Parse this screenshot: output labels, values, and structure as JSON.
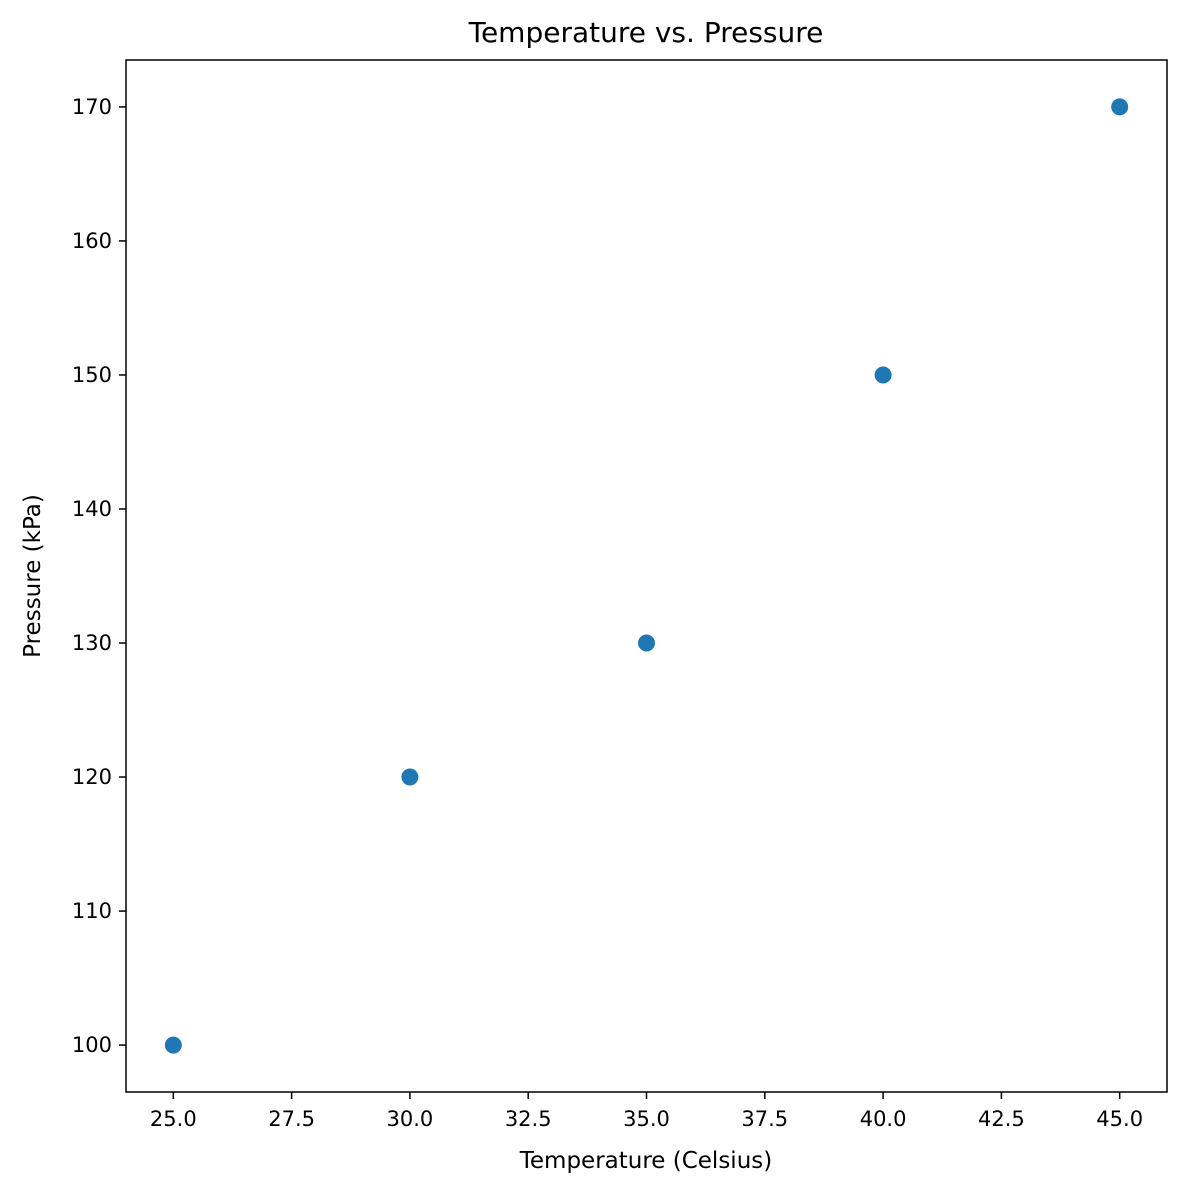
{
  "chart_data": {
    "type": "scatter",
    "title": "Temperature vs. Pressure",
    "xlabel": "Temperature (Celsius)",
    "ylabel": "Pressure (kPa)",
    "x": [
      25,
      30,
      35,
      40,
      45
    ],
    "y": [
      100,
      120,
      130,
      150,
      170
    ],
    "xlim": [
      24,
      46
    ],
    "ylim": [
      96.5,
      173.5
    ],
    "xticks": [
      "25.0",
      "27.5",
      "30.0",
      "32.5",
      "35.0",
      "37.5",
      "40.0",
      "42.5",
      "45.0"
    ],
    "yticks": [
      "100",
      "110",
      "120",
      "130",
      "140",
      "150",
      "160",
      "170"
    ],
    "grid": false,
    "marker_color": "#1f77b4"
  }
}
